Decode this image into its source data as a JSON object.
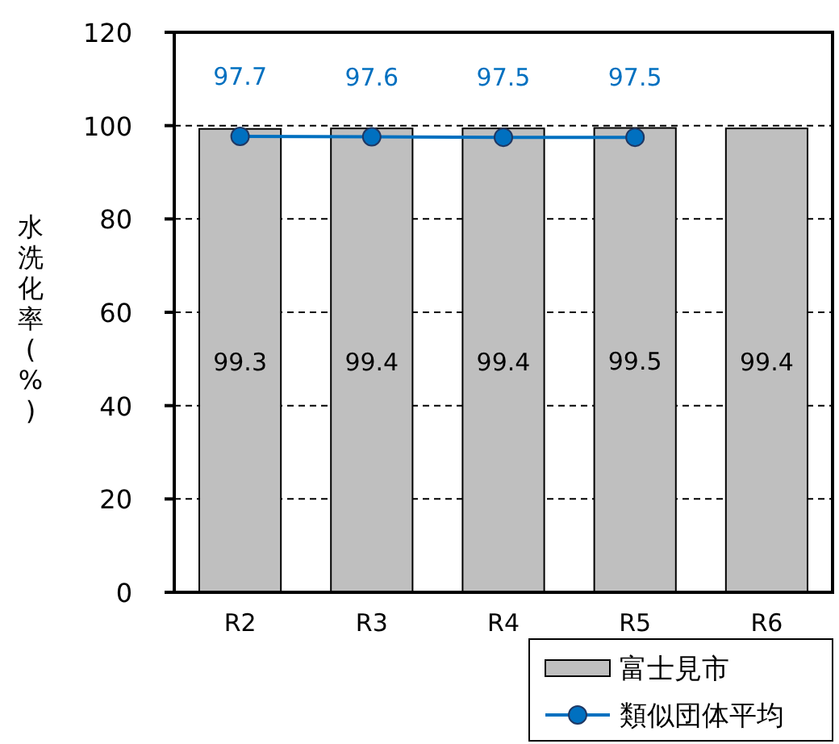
{
  "chart_data": {
    "type": "bar",
    "ylabel": "水洗化率(%)",
    "categories": [
      "R2",
      "R3",
      "R4",
      "R5",
      "R6"
    ],
    "series": [
      {
        "name": "富士見市",
        "color": "#bfbfbf",
        "values": [
          99.3,
          99.4,
          99.4,
          99.5,
          99.4
        ]
      },
      {
        "name": "類似団体平均",
        "type": "line",
        "color": "#0070c0",
        "marker": "circle",
        "values": [
          97.7,
          97.6,
          97.5,
          97.5,
          null
        ]
      }
    ],
    "ylim": [
      0,
      120
    ],
    "yticks": [
      0,
      20,
      40,
      60,
      80,
      100,
      120
    ],
    "grid": "y",
    "data_labels": true,
    "legend": "bottom right"
  }
}
